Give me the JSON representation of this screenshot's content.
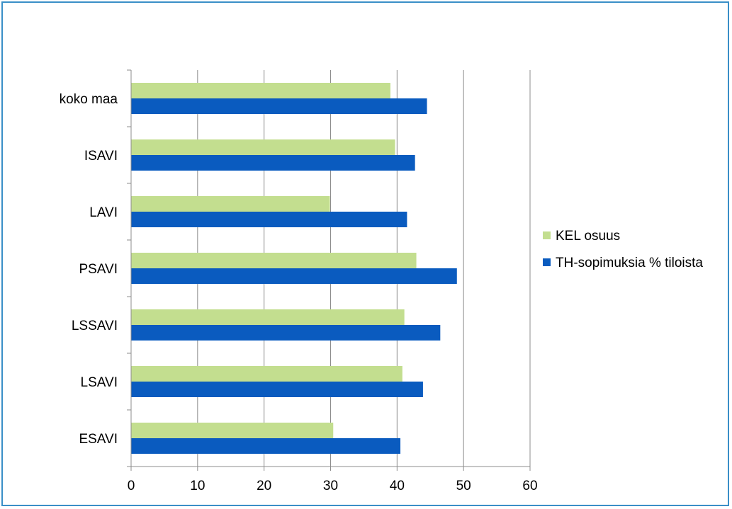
{
  "chart_data": {
    "type": "bar",
    "orientation": "horizontal",
    "title": "",
    "xlabel": "",
    "ylabel": "",
    "categories": [
      "koko maa",
      "ISAVI",
      "LAVI",
      "PSAVI",
      "LSSAVI",
      "LSAVI",
      "ESAVI"
    ],
    "series": [
      {
        "name": "KEL osuus",
        "color": "#c3de8f",
        "values": [
          39,
          39.7,
          29.9,
          42.9,
          41.1,
          40.8,
          30.4
        ]
      },
      {
        "name": "TH-sopimuksia % tiloista",
        "color": "#0a5bbf",
        "values": [
          44.5,
          42.7,
          41.5,
          49,
          46.5,
          43.9,
          40.5
        ]
      }
    ],
    "xlim": [
      0,
      60
    ],
    "xticks": [
      "0",
      "10",
      "20",
      "30",
      "40",
      "50",
      "60"
    ],
    "grid": "vertical",
    "legend": "right"
  }
}
